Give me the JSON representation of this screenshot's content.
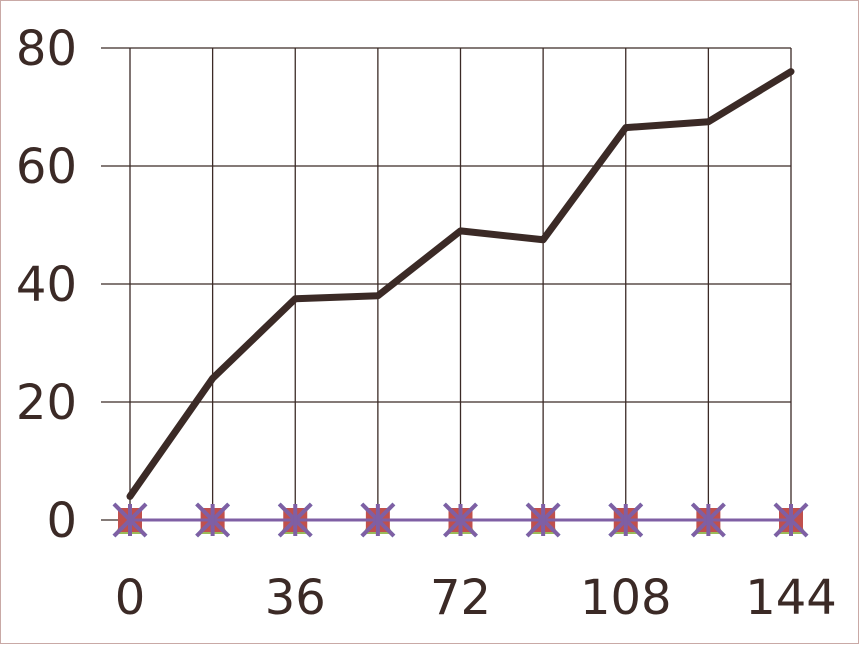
{
  "chart_data": {
    "type": "line",
    "title": "",
    "xlabel": "",
    "ylabel": "",
    "x": [
      0,
      18,
      36,
      54,
      72,
      90,
      108,
      126,
      144
    ],
    "x_ticks": [
      "0",
      "36",
      "72",
      "108",
      "144"
    ],
    "x_tick_values": [
      0,
      36,
      72,
      108,
      144
    ],
    "y_ticks": [
      "0",
      "20",
      "40",
      "60",
      "80"
    ],
    "y_tick_values": [
      0,
      20,
      40,
      60,
      80
    ],
    "xlim": [
      0,
      144
    ],
    "ylim": [
      0,
      80
    ],
    "grid": true,
    "series": [
      {
        "color": "#3b2a26",
        "marker": "none",
        "values": [
          4,
          24,
          37.5,
          38,
          49,
          47.5,
          66.5,
          67.5,
          76
        ]
      },
      {
        "color": "#7f5fa4",
        "marker": "star",
        "values": [
          0,
          0,
          0,
          0,
          0,
          0,
          0,
          0,
          0
        ]
      },
      {
        "color": "#c0504d",
        "marker": "square",
        "values": [
          0,
          0,
          0,
          0,
          0,
          0,
          0,
          0,
          0
        ]
      },
      {
        "color": "#9bbb59",
        "marker": "triangle",
        "values": [
          0,
          0,
          0,
          0,
          0,
          0,
          0,
          0,
          0
        ]
      },
      {
        "color": "#4bacc6",
        "marker": "x",
        "values": [
          0,
          0,
          0,
          0,
          0,
          0,
          0,
          0,
          0
        ]
      },
      {
        "color": "#f79646",
        "marker": "circle",
        "values": [
          0,
          0,
          0,
          0,
          0,
          0,
          0,
          0,
          0
        ]
      }
    ]
  }
}
